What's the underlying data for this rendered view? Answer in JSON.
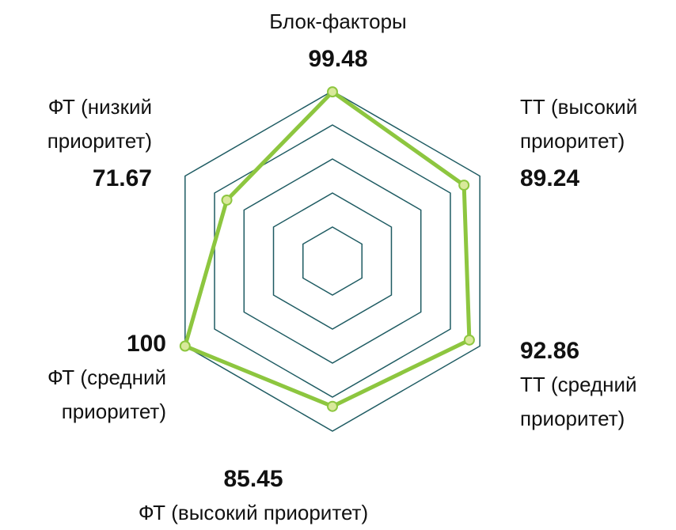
{
  "chart_data": {
    "type": "radar",
    "categories": [
      "Блок-факторы",
      "ТТ (высокий приоритет)",
      "ТТ (средний приоритет)",
      "ФТ (высокий приоритет)",
      "ФТ (средний приоритет)",
      "ФТ (низкий приоритет)"
    ],
    "values": [
      99.48,
      89.24,
      92.86,
      85.45,
      100,
      71.67
    ],
    "color": "#8dc63f",
    "marker_color": "#d9e99b",
    "grid_color": "#1e5b62",
    "ylim": [
      0,
      100
    ],
    "yticks": [
      20,
      40,
      60,
      80,
      100
    ],
    "grid": true
  }
}
